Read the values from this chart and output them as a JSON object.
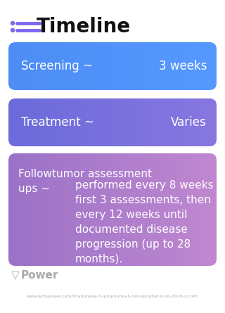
{
  "title": "Timeline",
  "bg_color": "#ffffff",
  "icon_color": "#7b68ee",
  "title_color": "#111111",
  "title_fontsize": 20,
  "rows": [
    {
      "label_left": "Screening ~",
      "label_right": "3 weeks",
      "bg_color_left": "#4d8df5",
      "bg_color_right": "#5599ff",
      "text_color": "#ffffff",
      "font_size": 12
    },
    {
      "label_left": "Treatment ~",
      "label_right": "Varies",
      "bg_color_left": "#6b6bdb",
      "bg_color_right": "#8877e0",
      "text_color": "#ffffff",
      "font_size": 12
    },
    {
      "label_left_line1": "Followtumor assessment",
      "label_left_line2": "ups ~",
      "label_right": "performed every 8 weeks for\nfirst 3 assessments, then\nevery 12 weeks until\ndocumented disease\nprogression (up to 28\nmonths).",
      "bg_color_left": "#9b72c8",
      "bg_color_right": "#c088d0",
      "text_color": "#ffffff",
      "font_size": 11
    }
  ],
  "footer_text": "Power",
  "footer_url": "www.withpower.com/trial/phase-3-lymphoma-t-cell-peripheral-10-2019-cc145",
  "footer_color": "#aaaaaa"
}
